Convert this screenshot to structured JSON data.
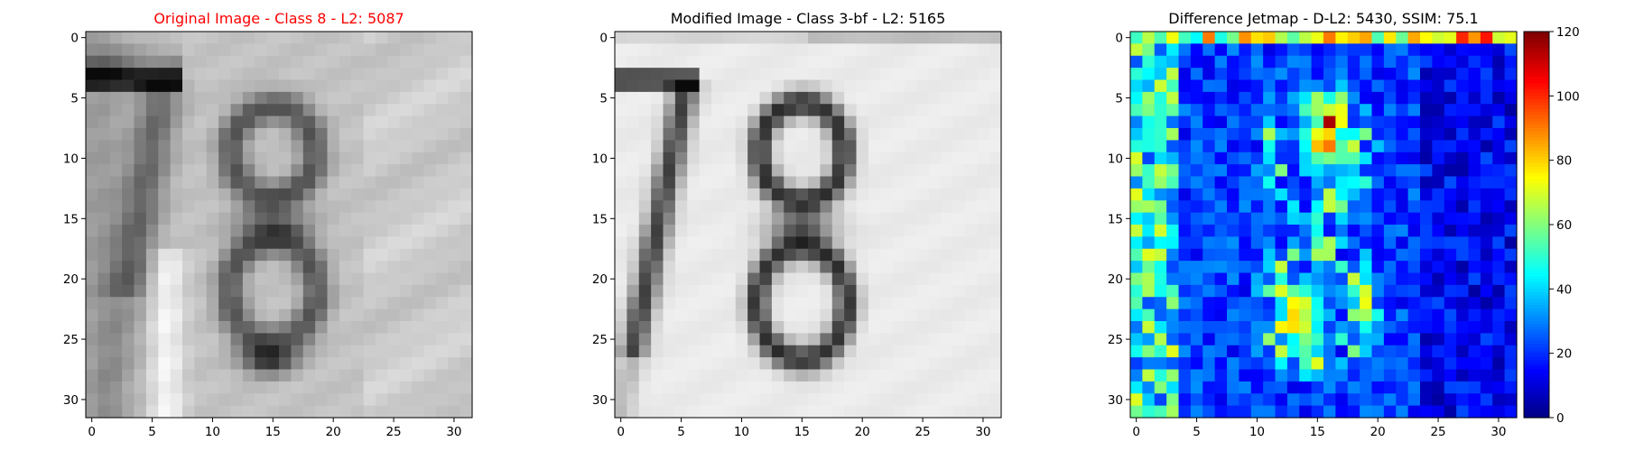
{
  "chart_data": [
    {
      "type": "heatmap",
      "title": "Original Image - Class 8 - L2: 5087",
      "title_color": "#ff0000",
      "colormap": "gray",
      "xlim": [
        0,
        31
      ],
      "ylim": [
        0,
        31
      ],
      "x_ticks": [
        "0",
        "5",
        "10",
        "15",
        "20",
        "25",
        "30"
      ],
      "y_ticks": [
        "0",
        "5",
        "10",
        "15",
        "20",
        "25",
        "30"
      ]
    },
    {
      "type": "heatmap",
      "title": "Modified Image - Class 3-bf - L2: 5165",
      "title_color": "#000000",
      "colormap": "gray",
      "xlim": [
        0,
        31
      ],
      "ylim": [
        0,
        31
      ],
      "x_ticks": [
        "0",
        "5",
        "10",
        "15",
        "20",
        "25",
        "30"
      ],
      "y_ticks": [
        "0",
        "5",
        "10",
        "15",
        "20",
        "25",
        "30"
      ]
    },
    {
      "type": "heatmap",
      "title": "Difference Jetmap - D-L2: 5430, SSIM: 75.1",
      "title_color": "#000000",
      "colormap": "jet",
      "xlim": [
        0,
        31
      ],
      "ylim": [
        0,
        31
      ],
      "x_ticks": [
        "0",
        "5",
        "10",
        "15",
        "20",
        "25",
        "30"
      ],
      "y_ticks": [
        "0",
        "5",
        "10",
        "15",
        "20",
        "25",
        "30"
      ],
      "colorbar": {
        "range": [
          0,
          120
        ],
        "ticks": [
          "0",
          "20",
          "40",
          "60",
          "80",
          "100",
          "120"
        ]
      }
    }
  ]
}
